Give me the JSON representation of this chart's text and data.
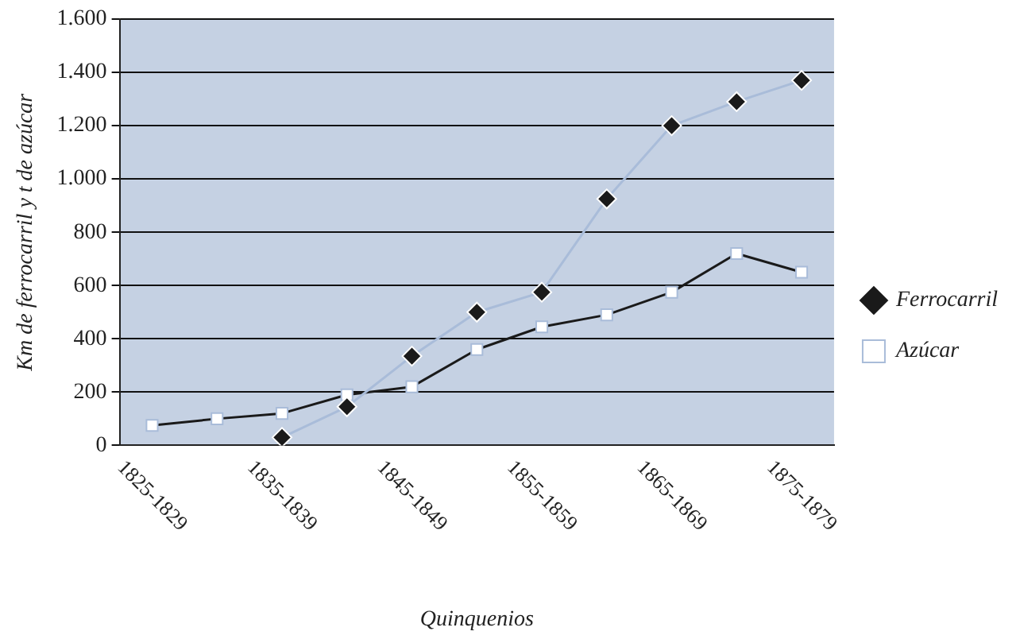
{
  "chart_data": {
    "type": "line",
    "xlabel": "Quinquenios",
    "ylabel": "Km de ferrocarril y t de azúcar",
    "categories": [
      "1825-1829",
      null,
      "1835-1839",
      null,
      "1845-1849",
      null,
      "1855-1859",
      null,
      "1865-1869",
      null,
      "1875-1879"
    ],
    "series": [
      {
        "name": "Ferrocarril",
        "color": "#a9bcd9",
        "marker": "diamond",
        "values": [
          null,
          null,
          30,
          145,
          335,
          500,
          575,
          925,
          1200,
          1290,
          1370
        ]
      },
      {
        "name": "Azúcar",
        "color": "#1a1a1a",
        "marker": "square",
        "values": [
          75,
          100,
          120,
          190,
          220,
          360,
          445,
          490,
          575,
          720,
          650
        ]
      }
    ],
    "ylim": [
      0,
      1600
    ],
    "yticks": [
      {
        "value": 0,
        "label": "0"
      },
      {
        "value": 200,
        "label": "200"
      },
      {
        "value": 400,
        "label": "400"
      },
      {
        "value": 600,
        "label": "600"
      },
      {
        "value": 800,
        "label": "800"
      },
      {
        "value": 1000,
        "label": "1.000"
      },
      {
        "value": 1200,
        "label": "1.200"
      },
      {
        "value": 1400,
        "label": "1.400"
      },
      {
        "value": 1600,
        "label": "1.600"
      }
    ],
    "grid": "y",
    "legend": "right"
  }
}
